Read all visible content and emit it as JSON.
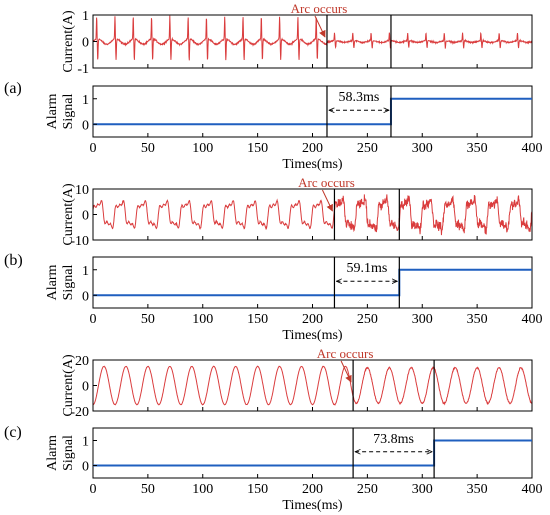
{
  "chart_data": [
    {
      "panel_label": "(a)",
      "type": "line",
      "current": {
        "ylabel": "Current(A)",
        "ylim": [
          -1,
          1
        ],
        "yticks": [
          -1,
          0,
          1
        ],
        "waveform": "spike",
        "period_ms": 16.67,
        "amplitude_pre": 0.85,
        "amplitude_post": 0.3,
        "noise": 0.04,
        "color": "#d62728"
      },
      "alarm": {
        "ylabel_line1": "Alarm",
        "ylabel_line2": "Signal",
        "ylim": [
          -0.5,
          1.5
        ],
        "yticks": [
          0,
          1
        ],
        "alarm_time_ms": 271.5,
        "color": "#1f5fbf"
      },
      "arc_onset_ms": 213.2,
      "arc_label": "Arc occurs",
      "delay_label": "58.3ms",
      "xlabel": "Times(ms)",
      "xlim": [
        0,
        400
      ],
      "xticks": [
        0,
        50,
        100,
        150,
        200,
        250,
        300,
        350,
        400
      ]
    },
    {
      "panel_label": "(b)",
      "type": "line",
      "current": {
        "ylabel": "Current(A)",
        "ylim": [
          -10,
          10
        ],
        "yticks": [
          -10,
          0,
          10
        ],
        "waveform": "distorted",
        "period_ms": 20,
        "amplitude_pre": 6,
        "amplitude_post": 7,
        "noise": 0.35,
        "noise_post": 2.6,
        "color": "#d62728"
      },
      "alarm": {
        "ylabel_line1": "Alarm",
        "ylabel_line2": "Signal",
        "ylim": [
          -0.5,
          1.5
        ],
        "yticks": [
          0,
          1
        ],
        "alarm_time_ms": 279.1,
        "color": "#1f5fbf"
      },
      "arc_onset_ms": 220,
      "arc_label": "Arc occurs",
      "delay_label": "59.1ms",
      "xlabel": "Times(ms)",
      "xlim": [
        0,
        400
      ],
      "xticks": [
        0,
        50,
        100,
        150,
        200,
        250,
        300,
        350,
        400
      ]
    },
    {
      "panel_label": "(c)",
      "type": "line",
      "current": {
        "ylabel": "Current(A)",
        "ylim": [
          -20,
          20
        ],
        "yticks": [
          -20,
          0,
          20
        ],
        "waveform": "sine",
        "period_ms": 20,
        "amplitude_pre": 15,
        "amplitude_post": 14,
        "noise": 0.3,
        "noise_post": 0.8,
        "color": "#d62728"
      },
      "alarm": {
        "ylabel_line1": "Alarm",
        "ylabel_line2": "Signal",
        "ylim": [
          -0.5,
          1.5
        ],
        "yticks": [
          0,
          1
        ],
        "alarm_time_ms": 310.8,
        "color": "#1f5fbf"
      },
      "arc_onset_ms": 237,
      "arc_label": "Arc occurs",
      "delay_label": "73.8ms",
      "xlabel": "Times(ms)",
      "xlim": [
        0,
        400
      ],
      "xticks": [
        0,
        50,
        100,
        150,
        200,
        250,
        300,
        350,
        400
      ]
    }
  ]
}
